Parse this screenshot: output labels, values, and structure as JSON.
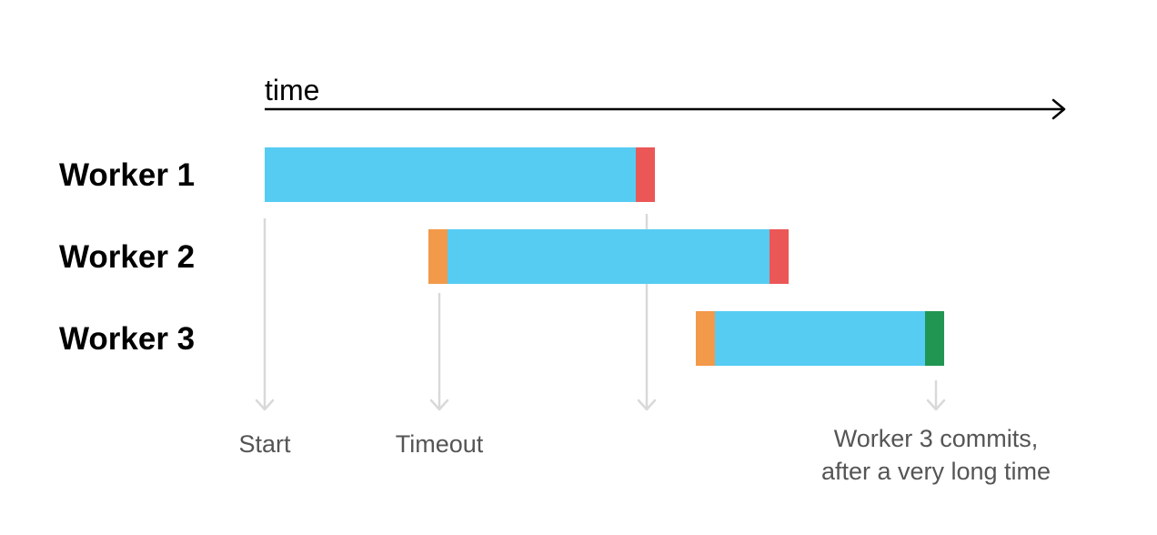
{
  "axis": {
    "label": "time"
  },
  "workers": [
    {
      "label": "Worker 1",
      "segments": [
        {
          "phase": "work",
          "start": 0,
          "end": 408
        },
        {
          "phase": "conflict",
          "start": 408,
          "end": 429
        }
      ]
    },
    {
      "label": "Worker 2",
      "segments": [
        {
          "phase": "retry",
          "start": 180,
          "end": 201
        },
        {
          "phase": "work",
          "start": 201,
          "end": 555
        },
        {
          "phase": "conflict",
          "start": 555,
          "end": 576
        }
      ]
    },
    {
      "label": "Worker 3",
      "segments": [
        {
          "phase": "retry",
          "start": 474,
          "end": 495
        },
        {
          "phase": "work",
          "start": 495,
          "end": 726
        },
        {
          "phase": "commit",
          "start": 726,
          "end": 747
        }
      ]
    }
  ],
  "markers": [
    {
      "at": 0,
      "lines": [
        "Start"
      ]
    },
    {
      "at": 192,
      "lines": [
        "Timeout"
      ]
    },
    {
      "at": 420,
      "lines": []
    },
    {
      "at": 738,
      "lines": [
        "Worker 3 commits,",
        "after a very long time"
      ]
    }
  ],
  "colors": {
    "work": "#56CCF2",
    "conflict": "#EB5757",
    "retry": "#F2994A",
    "commit": "#219653",
    "axis": "#000000",
    "marker": "#d9d9d9",
    "annotation": "#555555"
  }
}
